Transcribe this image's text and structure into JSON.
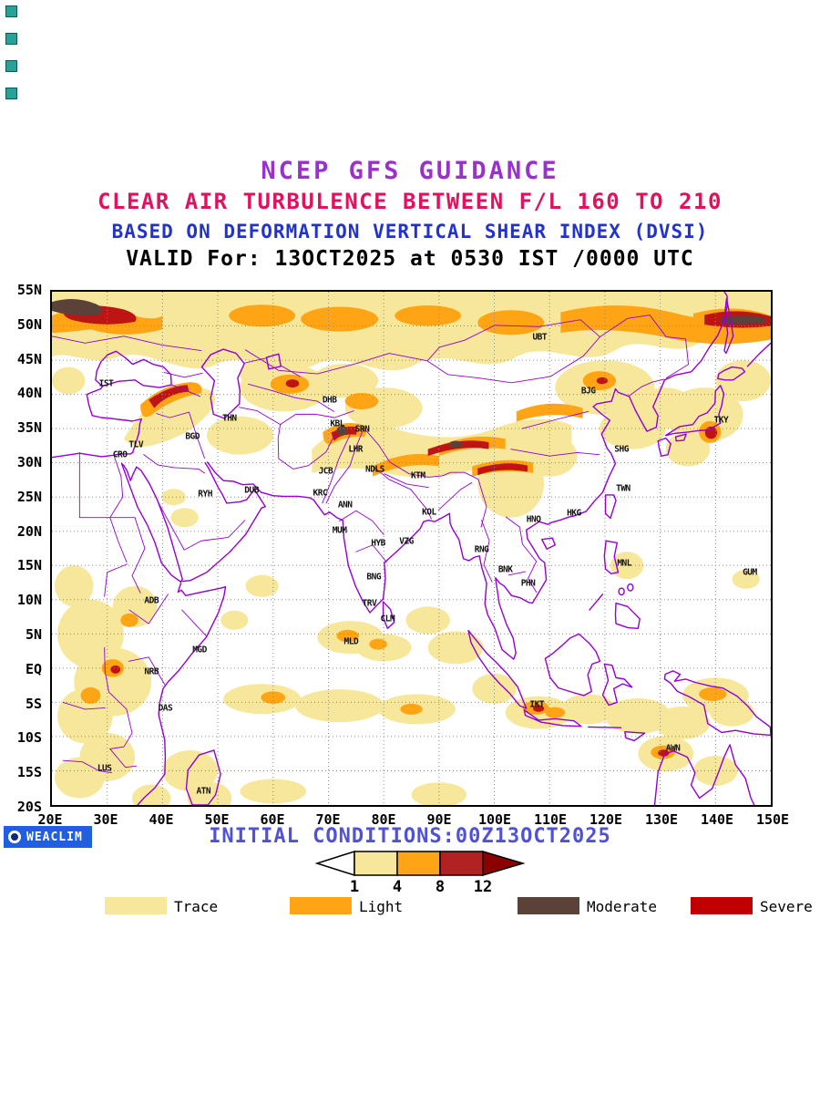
{
  "corner_markers": {
    "count": 4,
    "color": "#2AA198"
  },
  "titles": {
    "line1": {
      "text": "NCEP GFS GUIDANCE",
      "color": "#9932CC"
    },
    "line2": {
      "text": "CLEAR AIR TURBULENCE BETWEEN F/L 160 TO 210",
      "color": "#E0115F"
    },
    "line3": {
      "text": "BASED ON DEFORMATION VERTICAL SHEAR INDEX (DVSI)",
      "color": "#2233CC"
    },
    "line4": {
      "text": "VALID For: 13OCT2025 at 0530 IST /0000 UTC",
      "color": "#000000"
    }
  },
  "map": {
    "extent": {
      "lon": [
        20,
        150
      ],
      "lat": [
        -20,
        55
      ]
    },
    "lat_labels": [
      "55N",
      "50N",
      "45N",
      "40N",
      "35N",
      "30N",
      "25N",
      "20N",
      "15N",
      "10N",
      "5N",
      "EQ",
      "5S",
      "10S",
      "15S",
      "20S"
    ],
    "lon_labels": [
      "20E",
      "30E",
      "40E",
      "50E",
      "60E",
      "70E",
      "80E",
      "90E",
      "100E",
      "110E",
      "120E",
      "130E",
      "140E",
      "150E"
    ],
    "stations": [
      {
        "code": "IST",
        "lon": 29.8,
        "lat": 41.5
      },
      {
        "code": "CRO",
        "lon": 32.3,
        "lat": 31.2
      },
      {
        "code": "TLV",
        "lon": 35.2,
        "lat": 32.6
      },
      {
        "code": "BGD",
        "lon": 45.4,
        "lat": 33.8
      },
      {
        "code": "THN",
        "lon": 52.1,
        "lat": 36.5
      },
      {
        "code": "DHB",
        "lon": 70.2,
        "lat": 39.1
      },
      {
        "code": "KBL",
        "lon": 71.6,
        "lat": 35.7
      },
      {
        "code": "SRN",
        "lon": 76.1,
        "lat": 34.9
      },
      {
        "code": "LHR",
        "lon": 74.9,
        "lat": 32.0
      },
      {
        "code": "JCB",
        "lon": 69.5,
        "lat": 28.8
      },
      {
        "code": "NDLS",
        "lon": 78.4,
        "lat": 29.0
      },
      {
        "code": "KTM",
        "lon": 86.2,
        "lat": 28.1
      },
      {
        "code": "KRC",
        "lon": 68.5,
        "lat": 25.5
      },
      {
        "code": "ANN",
        "lon": 73.0,
        "lat": 23.8
      },
      {
        "code": "KOL",
        "lon": 88.2,
        "lat": 22.7
      },
      {
        "code": "DUB",
        "lon": 56.1,
        "lat": 25.9
      },
      {
        "code": "RYH",
        "lon": 47.7,
        "lat": 25.4
      },
      {
        "code": "MUM",
        "lon": 72.0,
        "lat": 20.1
      },
      {
        "code": "HYB",
        "lon": 79.0,
        "lat": 18.2
      },
      {
        "code": "VZG",
        "lon": 84.1,
        "lat": 18.5
      },
      {
        "code": "BNG",
        "lon": 78.2,
        "lat": 13.3
      },
      {
        "code": "TRV",
        "lon": 77.4,
        "lat": 9.5
      },
      {
        "code": "CLM",
        "lon": 80.7,
        "lat": 7.2
      },
      {
        "code": "MLD",
        "lon": 74.1,
        "lat": 3.9
      },
      {
        "code": "MGD",
        "lon": 46.7,
        "lat": 2.6
      },
      {
        "code": "ADB",
        "lon": 38.0,
        "lat": 9.9
      },
      {
        "code": "NRB",
        "lon": 38.0,
        "lat": -0.6
      },
      {
        "code": "DAS",
        "lon": 40.5,
        "lat": -5.9
      },
      {
        "code": "LUS",
        "lon": 29.5,
        "lat": -14.7
      },
      {
        "code": "ATN",
        "lon": 47.4,
        "lat": -18.0
      },
      {
        "code": "UBT",
        "lon": 108.2,
        "lat": 48.4
      },
      {
        "code": "BJG",
        "lon": 117.0,
        "lat": 40.5
      },
      {
        "code": "SHG",
        "lon": 123.0,
        "lat": 32.0
      },
      {
        "code": "TKY",
        "lon": 141.0,
        "lat": 36.2
      },
      {
        "code": "TWN",
        "lon": 123.3,
        "lat": 26.2
      },
      {
        "code": "HKG",
        "lon": 114.4,
        "lat": 22.6
      },
      {
        "code": "HNO",
        "lon": 107.1,
        "lat": 21.7
      },
      {
        "code": "RNG",
        "lon": 97.7,
        "lat": 17.3
      },
      {
        "code": "BNK",
        "lon": 102.0,
        "lat": 14.4
      },
      {
        "code": "PHN",
        "lon": 106.1,
        "lat": 12.4
      },
      {
        "code": "MNL",
        "lon": 123.5,
        "lat": 15.3
      },
      {
        "code": "GUM",
        "lon": 146.2,
        "lat": 14.0
      },
      {
        "code": "IKT",
        "lon": 107.7,
        "lat": -5.4
      },
      {
        "code": "AWN",
        "lon": 132.3,
        "lat": -11.7
      }
    ]
  },
  "footer": {
    "logo_text": "WEACLIM",
    "logo_bg_color": "#1F5FE0",
    "initial_conditions": "INITIAL CONDITIONS:00Z13OCT2025",
    "initial_conditions_color": "#4F51D8"
  },
  "colorbar": {
    "tick_labels": [
      "1",
      "4",
      "8",
      "12"
    ],
    "segment_colors": [
      "#FFFFFF",
      "#F7E79B",
      "#FFA415",
      "#B22222"
    ],
    "arrow_right_color": "#8B0000"
  },
  "legend": {
    "items": [
      {
        "label": "Trace",
        "color": "#F7E79B"
      },
      {
        "label": "Light",
        "color": "#FFA415"
      },
      {
        "label": "Moderate",
        "color": "#5A4238"
      },
      {
        "label": "Severe",
        "color": "#C00000"
      }
    ]
  },
  "turbulence_scale": {
    "index_name": "DVSI",
    "breaks": [
      1,
      4,
      8,
      12
    ],
    "categories": [
      "Trace",
      "Light",
      "Moderate",
      "Severe"
    ]
  }
}
